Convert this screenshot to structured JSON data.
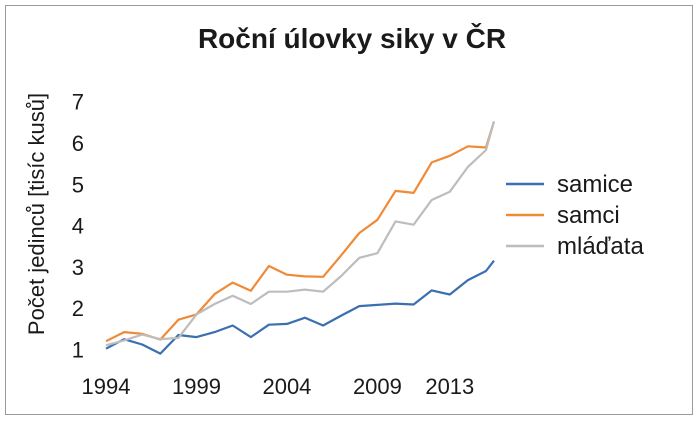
{
  "chart_data": {
    "type": "line",
    "title": "Roční úlovky siky v ČR",
    "xlabel": "",
    "ylabel": "Počet jedinců [tisíc kusů]",
    "x": [
      1994,
      1995,
      1996,
      1997,
      1998,
      1999,
      2000,
      2001,
      2002,
      2003,
      2004,
      2005,
      2006,
      2007,
      2008,
      2009,
      2010,
      2011,
      2012,
      2013,
      2014,
      2015
    ],
    "x_tick_labels": [
      "1994",
      "1999",
      "2004",
      "2009",
      "2013"
    ],
    "x_tick_values": [
      1994,
      1999,
      2004,
      2009,
      2013
    ],
    "y_tick_labels": [
      "1",
      "2",
      "3",
      "4",
      "5",
      "6",
      "7"
    ],
    "y_tick_values": [
      1,
      2,
      3,
      4,
      5,
      6,
      7
    ],
    "ylim": [
      0.6,
      7.5
    ],
    "xlim": [
      1994,
      2015
    ],
    "grid": false,
    "legend_position": "right",
    "series": [
      {
        "name": "samice",
        "color": "#3a6fb0",
        "values": [
          1.02,
          1.25,
          1.12,
          0.9,
          1.35,
          1.3,
          1.42,
          1.58,
          1.3,
          1.6,
          1.62,
          1.77,
          1.58,
          1.82,
          2.05,
          2.08,
          2.11,
          2.09,
          2.43,
          2.33,
          2.68,
          2.9
        ]
      },
      {
        "name": "samci",
        "color": "#f08a36",
        "values": [
          1.2,
          1.42,
          1.38,
          1.24,
          1.72,
          1.85,
          2.34,
          2.62,
          2.42,
          3.02,
          2.81,
          2.77,
          2.76,
          3.28,
          3.82,
          4.14,
          4.84,
          4.79,
          5.53,
          5.69,
          5.92,
          5.89
        ]
      },
      {
        "name": "mláďata",
        "color": "#bdbdbd",
        "values": [
          1.1,
          1.22,
          1.36,
          1.25,
          1.28,
          1.85,
          2.1,
          2.3,
          2.1,
          2.4,
          2.4,
          2.45,
          2.4,
          2.78,
          3.22,
          3.33,
          4.1,
          4.02,
          4.62,
          4.82,
          5.42,
          5.83
        ]
      }
    ],
    "series_end": {
      "samice": 3.15,
      "samci": 6.52,
      "mláďata": 6.52
    }
  }
}
